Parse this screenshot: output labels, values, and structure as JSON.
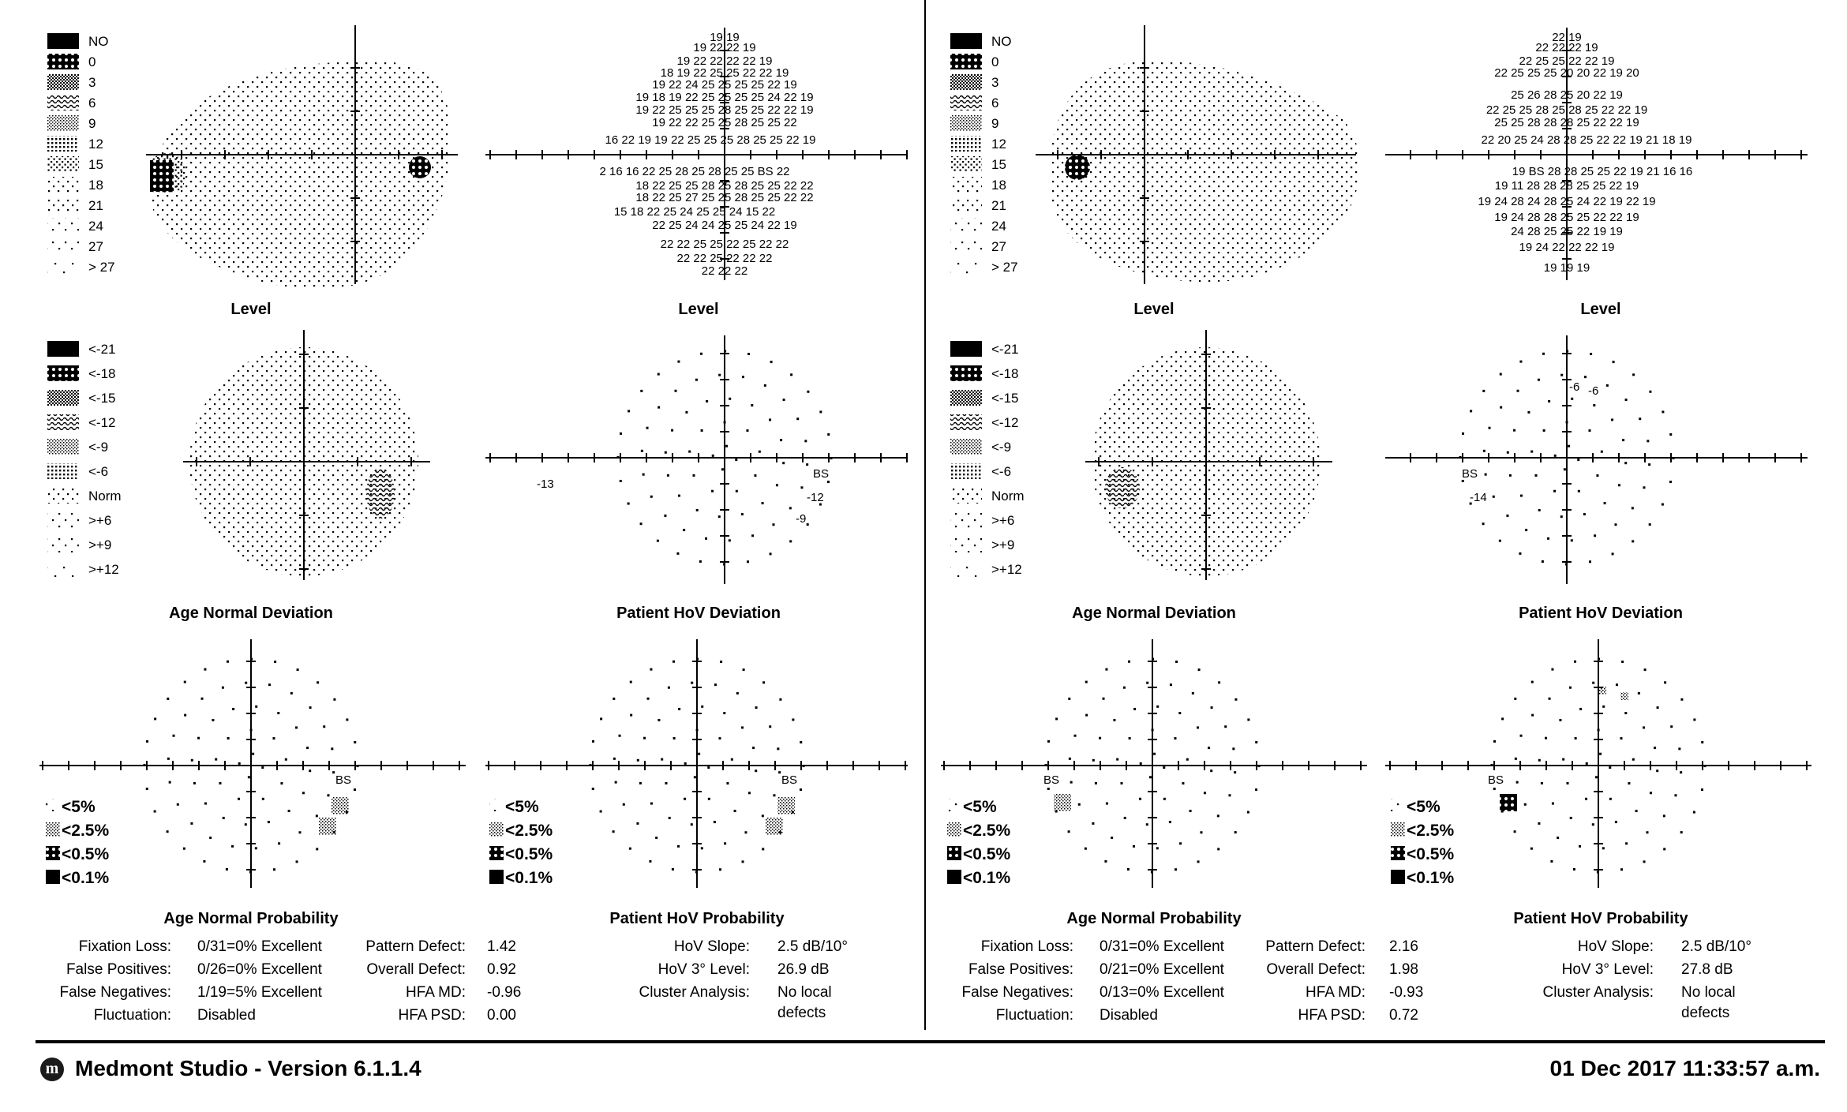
{
  "left_eye_panel": {
    "level_legend": [
      "NO",
      "0",
      "3",
      "6",
      "9",
      "12",
      "15",
      "18",
      "21",
      "24",
      "27",
      "> 27"
    ],
    "deviation_legend": [
      "<-21",
      "<-18",
      "<-15",
      "<-12",
      "<-9",
      "<-6",
      "Norm",
      ">+6",
      ">+9",
      ">+12"
    ],
    "probability_legend": [
      "<5%",
      "<2.5%",
      "<0.5%",
      "<0.1%"
    ],
    "titles": {
      "level_map": "Level",
      "level_values": "Level",
      "age_normal_deviation": "Age Normal Deviation",
      "patient_hov_deviation": "Patient HoV Deviation",
      "age_normal_probability": "Age Normal Probability",
      "patient_hov_probability": "Patient HoV Probability"
    },
    "level_value_rows": [
      "19 19",
      "19  22  22  19",
      "19  22  22  22  22  19",
      "18  19  22  25  25  22  22  19",
      "19  22  24  25 25 25 25  22  19",
      "19  18  19  22  25  25  25  25  24  22  19",
      "19  22  25  25  25  28  25  25  22  22  19",
      "19  22  22  25  25  28  25  25  22",
      "16  22  19  19  22  25  25  25  28  25  25  22  19",
      "2  16  16  22  25  28  25  28  25  25  BS  22",
      "18  22  25  25  28  25  28  25  25  22  22",
      "18  22  25  27  25  25  28  25  25  22  22",
      "15  18  22  25  24  25  25  24  15  22",
      "22  25  24  24 25 25  24  22  19",
      "22  22  25  25  22  25  22  22",
      "22  22  25  22  22  22",
      "22  22  22"
    ],
    "hov_deviation_values": [
      "-13",
      "BS",
      "-12",
      "-9"
    ],
    "stats": {
      "fixation_loss": {
        "label": "Fixation Loss:",
        "value": "0/31=0% Excellent"
      },
      "false_positives": {
        "label": "False Positives:",
        "value": "0/26=0% Excellent"
      },
      "false_negatives": {
        "label": "False Negatives:",
        "value": "1/19=5% Excellent"
      },
      "fluctuation": {
        "label": "Fluctuation:",
        "value": "Disabled"
      },
      "pattern_defect": {
        "label": "Pattern Defect:",
        "value": "1.42"
      },
      "overall_defect": {
        "label": "Overall Defect:",
        "value": "0.92"
      },
      "hfa_md": {
        "label": "HFA MD:",
        "value": "-0.96"
      },
      "hfa_psd": {
        "label": "HFA PSD:",
        "value": "0.00"
      },
      "hov_slope": {
        "label": "HoV Slope:",
        "value": "2.5 dB/10°"
      },
      "hov_3_level": {
        "label": "HoV 3° Level:",
        "value": "26.9 dB"
      },
      "cluster_analysis": {
        "label": "Cluster Analysis:",
        "value_line1": "No local",
        "value_line2": "defects"
      }
    }
  },
  "right_eye_panel": {
    "level_legend": [
      "NO",
      "0",
      "3",
      "6",
      "9",
      "12",
      "15",
      "18",
      "21",
      "24",
      "27",
      "> 27"
    ],
    "deviation_legend": [
      "<-21",
      "<-18",
      "<-15",
      "<-12",
      "<-9",
      "<-6",
      "Norm",
      ">+6",
      ">+9",
      ">+12"
    ],
    "probability_legend": [
      "<5%",
      "<2.5%",
      "<0.5%",
      "<0.1%"
    ],
    "titles": {
      "level_map": "Level",
      "level_values": "Level",
      "age_normal_deviation": "Age Normal Deviation",
      "patient_hov_deviation": "Patient HoV Deviation",
      "age_normal_probability": "Age Normal Probability",
      "patient_hov_probability": "Patient HoV Probability"
    },
    "level_value_rows": [
      "22  19",
      "22  22  22  19",
      "22  25  25  22  22  19",
      "22  25  25  25 20  20  22  19  20",
      "25  26  28  25  20  22  19",
      "22  25  25  28  25  28  25  22  22  19",
      "25  25  28  28  28  25  22  22  19",
      "22  20  25  24  28  28  25  22  22  19  21  18  19",
      "19  BS  28  28  25  25  22  19  21  16  16",
      "19  11  28  28  28  25  25  22  19",
      "19  24  28  24  28  25  24  22  19  22  19",
      "19  24  28  28 25  25  22  22  19",
      "24  28  25  25  22  19  19",
      "19  24  22  22  22  19",
      "19  19  19"
    ],
    "hov_deviation_values": [
      "-6",
      "-6",
      "BS",
      "-14"
    ],
    "stats": {
      "fixation_loss": {
        "label": "Fixation Loss:",
        "value": "0/31=0% Excellent"
      },
      "false_positives": {
        "label": "False Positives:",
        "value": "0/21=0% Excellent"
      },
      "false_negatives": {
        "label": "False Negatives:",
        "value": "0/13=0% Excellent"
      },
      "fluctuation": {
        "label": "Fluctuation:",
        "value": "Disabled"
      },
      "pattern_defect": {
        "label": "Pattern Defect:",
        "value": "2.16"
      },
      "overall_defect": {
        "label": "Overall Defect:",
        "value": "1.98"
      },
      "hfa_md": {
        "label": "HFA MD:",
        "value": "-0.93"
      },
      "hfa_psd": {
        "label": "HFA PSD:",
        "value": "0.72"
      },
      "hov_slope": {
        "label": "HoV Slope:",
        "value": "2.5 dB/10°"
      },
      "hov_3_level": {
        "label": "HoV 3° Level:",
        "value": "27.8 dB"
      },
      "cluster_analysis": {
        "label": "Cluster Analysis:",
        "value_line1": "No local",
        "value_line2": "defects"
      }
    }
  },
  "blind_spot_label": "BS",
  "footer": {
    "logo_letter": "m",
    "app_title": "Medmont Studio - Version 6.1.1.4",
    "datetime": "01 Dec 2017 11:33:57 a.m."
  }
}
